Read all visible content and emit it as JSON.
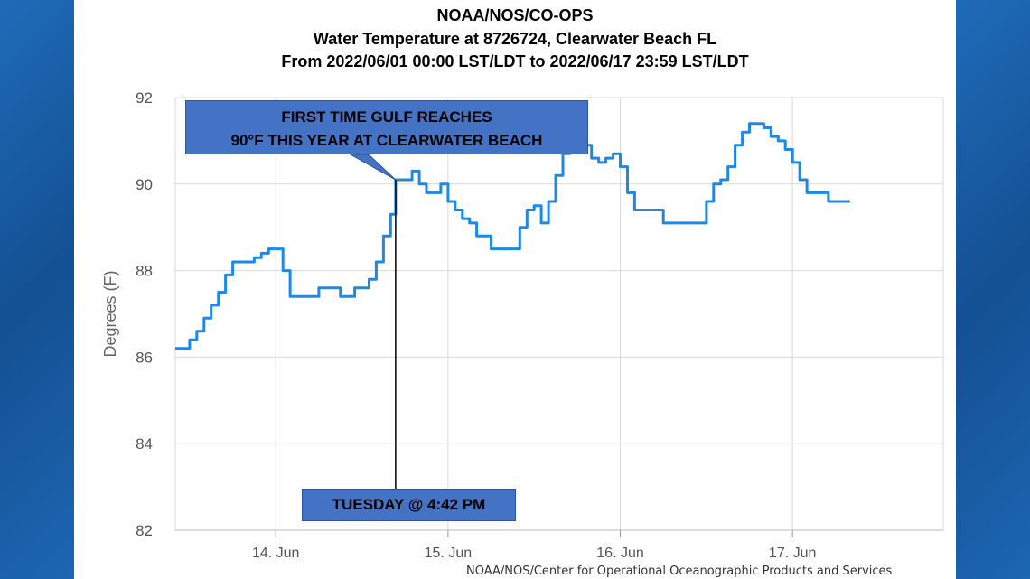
{
  "title_lines": [
    "NOAA/NOS/CO-OPS",
    "Water Temperature at 8726724, Clearwater Beach FL",
    "From 2022/06/01 00:00 LST/LDT to 2022/06/17 23:59 LST/LDT"
  ],
  "credit": "NOAA/NOS/Center for Operational Oceanographic Products and Services",
  "callouts": {
    "top_line1": "FIRST TIME GULF REACHES",
    "top_line2": "90°F THIS YEAR AT CLEARWATER BEACH",
    "bottom": "TUESDAY @ 4:42 PM"
  },
  "colors": {
    "line": "#1e88e5",
    "callout": "#4472c4",
    "grid": "#d9d9d9",
    "background": "#1a5fa8"
  },
  "chart_data": {
    "type": "line",
    "ylabel": "Degrees (F)",
    "xlabel": "",
    "ylim": [
      82,
      92
    ],
    "yticks": [
      82,
      84,
      86,
      88,
      90,
      92
    ],
    "xlim": [
      "2022-06-13 10:00",
      "2022-06-17 21:00"
    ],
    "xticks": [
      "2022-06-14",
      "2022-06-15",
      "2022-06-16",
      "2022-06-17"
    ],
    "xtick_labels": [
      "14. Jun",
      "15. Jun",
      "16. Jun",
      "17. Jun"
    ],
    "grid": true,
    "annotation_time": "2022-06-14 16:42",
    "series": [
      {
        "x": [
          "2022-06-13 10:00",
          "2022-06-13 12:00",
          "2022-06-13 13:00",
          "2022-06-13 14:00",
          "2022-06-13 15:00",
          "2022-06-13 16:00",
          "2022-06-13 17:00",
          "2022-06-13 18:00",
          "2022-06-13 19:00",
          "2022-06-13 20:00",
          "2022-06-13 21:00",
          "2022-06-13 22:00",
          "2022-06-13 23:00",
          "2022-06-14 00:00",
          "2022-06-14 01:00",
          "2022-06-14 02:00",
          "2022-06-14 04:00",
          "2022-06-14 05:00",
          "2022-06-14 06:00",
          "2022-06-14 07:00",
          "2022-06-14 08:00",
          "2022-06-14 09:00",
          "2022-06-14 10:00",
          "2022-06-14 11:00",
          "2022-06-14 12:00",
          "2022-06-14 13:00",
          "2022-06-14 14:00",
          "2022-06-14 15:00",
          "2022-06-14 16:00",
          "2022-06-14 16:42",
          "2022-06-14 18:00",
          "2022-06-14 19:00",
          "2022-06-14 20:00",
          "2022-06-14 21:00",
          "2022-06-14 22:00",
          "2022-06-14 23:00",
          "2022-06-15 00:00",
          "2022-06-15 01:00",
          "2022-06-15 02:00",
          "2022-06-15 03:00",
          "2022-06-15 04:00",
          "2022-06-15 06:00",
          "2022-06-15 08:00",
          "2022-06-15 10:00",
          "2022-06-15 11:00",
          "2022-06-15 12:00",
          "2022-06-15 13:00",
          "2022-06-15 14:00",
          "2022-06-15 15:00",
          "2022-06-15 16:00",
          "2022-06-15 17:00",
          "2022-06-15 18:00",
          "2022-06-15 19:00",
          "2022-06-15 20:00",
          "2022-06-15 21:00",
          "2022-06-15 22:00",
          "2022-06-15 23:00",
          "2022-06-16 00:00",
          "2022-06-16 01:00",
          "2022-06-16 02:00",
          "2022-06-16 04:00",
          "2022-06-16 06:00",
          "2022-06-16 08:00",
          "2022-06-16 10:00",
          "2022-06-16 11:00",
          "2022-06-16 12:00",
          "2022-06-16 13:00",
          "2022-06-16 14:00",
          "2022-06-16 15:00",
          "2022-06-16 16:00",
          "2022-06-16 17:00",
          "2022-06-16 18:00",
          "2022-06-16 19:00",
          "2022-06-16 20:00",
          "2022-06-16 21:00",
          "2022-06-16 22:00",
          "2022-06-16 23:00",
          "2022-06-17 00:00",
          "2022-06-17 01:00",
          "2022-06-17 02:00",
          "2022-06-17 03:00",
          "2022-06-17 05:00",
          "2022-06-17 07:00",
          "2022-06-17 08:00"
        ],
        "y": [
          86.2,
          86.4,
          86.6,
          86.9,
          87.2,
          87.5,
          87.9,
          88.2,
          88.2,
          88.2,
          88.3,
          88.4,
          88.5,
          88.5,
          88.0,
          87.4,
          87.4,
          87.4,
          87.6,
          87.6,
          87.6,
          87.4,
          87.4,
          87.6,
          87.6,
          87.8,
          88.2,
          88.8,
          89.3,
          90.1,
          90.1,
          90.3,
          90.0,
          89.8,
          89.8,
          90.0,
          89.6,
          89.4,
          89.2,
          89.1,
          88.8,
          88.5,
          88.5,
          89.0,
          89.4,
          89.5,
          89.1,
          89.6,
          90.2,
          90.7,
          91.1,
          91.0,
          90.9,
          90.6,
          90.5,
          90.6,
          90.7,
          90.4,
          89.8,
          89.4,
          89.4,
          89.1,
          89.1,
          89.1,
          89.1,
          89.6,
          90.0,
          90.1,
          90.4,
          90.9,
          91.2,
          91.4,
          91.4,
          91.3,
          91.1,
          91.0,
          90.8,
          90.5,
          90.1,
          89.8,
          89.8,
          89.6,
          89.6,
          89.6
        ]
      }
    ]
  }
}
